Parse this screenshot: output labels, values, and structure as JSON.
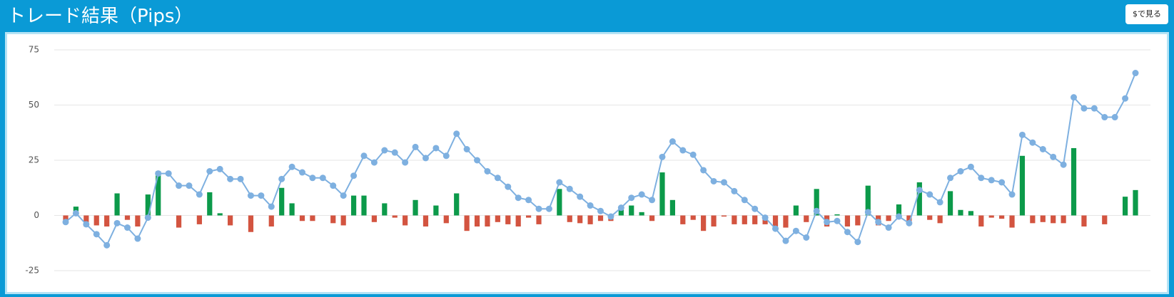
{
  "button": "$で見る",
  "chart_data": {
    "type": "combo",
    "title": "トレード結果（Pips）",
    "ylim": [
      -25,
      75
    ],
    "yticks": [
      -25,
      0,
      25,
      50,
      75
    ],
    "grid": true,
    "series": [
      {
        "type": "bar",
        "color": "#0c9a4a",
        "negative_color": "#d35440",
        "values": [
          -3,
          4,
          -5,
          -4.5,
          -5,
          10,
          -2,
          -5,
          9.5,
          20,
          0,
          -5.5,
          0,
          -4,
          10.5,
          1,
          -4.5,
          0,
          -7.5,
          0,
          -5,
          12.5,
          5.5,
          -2.5,
          -2.5,
          0,
          -3.5,
          -4.5,
          9,
          9,
          -3,
          5.5,
          -1,
          -4.5,
          7,
          -5,
          4.5,
          -3.5,
          10,
          -7,
          -5,
          -5,
          -3,
          -4,
          -5,
          -1,
          -4,
          0,
          12,
          -3,
          -3.5,
          -4,
          -2.5,
          -2.5,
          4,
          4.5,
          1.5,
          -2.5,
          19.5,
          7,
          -4,
          -2,
          -7,
          -5,
          -0.5,
          -4,
          -4,
          -4,
          -4,
          -5,
          -5.5,
          4.5,
          -3,
          12,
          -5,
          0.5,
          -5,
          -4.5,
          13.5,
          -4.5,
          -2.5,
          5,
          -3,
          15,
          -2,
          -3.5,
          11,
          2.5,
          2,
          -5,
          -1,
          -1.5,
          -5.5,
          27,
          -3.5,
          -3,
          -3.5,
          -3.5,
          30.5,
          -5,
          0,
          -4,
          0,
          8.5,
          11.5
        ]
      },
      {
        "type": "line",
        "color": "#7eb0e0",
        "values": [
          -3,
          1,
          -4,
          -8.5,
          -13.5,
          -3.5,
          -5.5,
          -10.5,
          -1,
          19,
          19,
          13.5,
          13.5,
          9.5,
          20,
          21,
          16.5,
          16.5,
          9,
          9,
          4,
          16.5,
          22,
          19.5,
          17,
          17,
          13.5,
          9,
          18,
          27,
          24,
          29.5,
          28.5,
          24,
          31,
          26,
          30.5,
          27,
          37,
          30,
          25,
          20,
          17,
          13,
          8,
          7,
          3,
          3,
          15,
          12,
          8.5,
          4.5,
          2,
          -0.5,
          3.5,
          8,
          9.5,
          7,
          26.5,
          33.5,
          29.5,
          27.5,
          20.5,
          15.5,
          15,
          11,
          7,
          3,
          -1,
          -6,
          -11.5,
          -7,
          -10,
          2,
          -3,
          -2.5,
          -7.5,
          -12,
          1.5,
          -3,
          -5.5,
          -0.5,
          -3.5,
          11.5,
          9.5,
          6,
          17,
          20,
          22,
          17,
          16,
          15,
          9.5,
          36.5,
          33,
          30,
          26.5,
          23,
          53.5,
          48.5,
          48.5,
          44.5,
          44.5,
          53,
          64.5
        ]
      }
    ]
  }
}
